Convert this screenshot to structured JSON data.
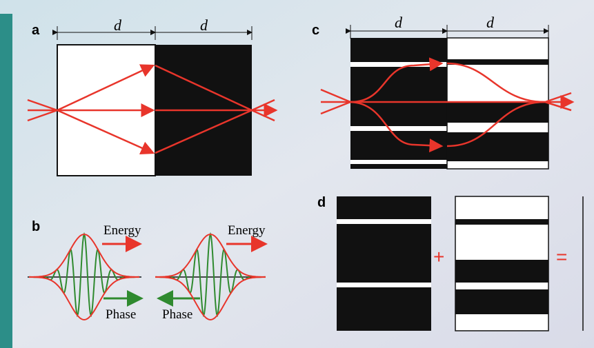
{
  "panels": {
    "a": {
      "label": "a",
      "widths": [
        "d",
        "d"
      ]
    },
    "b": {
      "label": "b",
      "pulses": [
        {
          "energy": "Energy",
          "phase": "Phase"
        },
        {
          "energy": "Energy",
          "phase": "Phase"
        }
      ]
    },
    "c": {
      "label": "c",
      "widths": [
        "d",
        "d"
      ]
    },
    "d": {
      "label": "d",
      "operators": [
        "+",
        "="
      ]
    }
  }
}
